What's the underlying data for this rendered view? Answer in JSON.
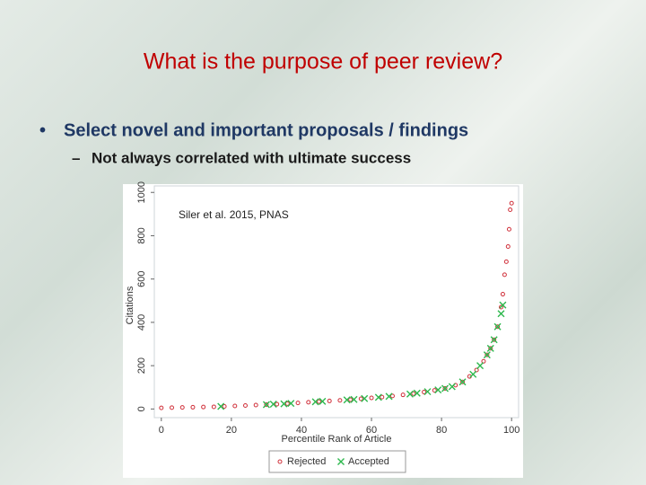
{
  "slide": {
    "title": "What is the purpose of peer review?",
    "bullets": [
      {
        "text": "Select novel and important  proposals / findings",
        "sub": [
          "Not always correlated with ultimate success"
        ]
      }
    ]
  },
  "chart_data": {
    "type": "scatter",
    "annotation": "Siler et al. 2015, PNAS",
    "x_label": "Percentile Rank of Article",
    "y_label": "Citations",
    "xlim": [
      -2,
      102
    ],
    "ylim": [
      -40,
      1030
    ],
    "xticks": [
      0,
      20,
      40,
      60,
      80,
      100
    ],
    "yticks": [
      0,
      200,
      400,
      600,
      800,
      1000
    ],
    "series": [
      {
        "name": "Rejected",
        "color": "#d0303a",
        "marker": "circle",
        "x": [
          0,
          3,
          6,
          9,
          12,
          15,
          18,
          21,
          24,
          27,
          30,
          33,
          36,
          39,
          42,
          45,
          48,
          51,
          54,
          57,
          60,
          63,
          66,
          69,
          72,
          75,
          78,
          81,
          84,
          86,
          88,
          90,
          92,
          93,
          94,
          95,
          96,
          97,
          97.5,
          98,
          98.5,
          99,
          99.3,
          99.6,
          100
        ],
        "values": [
          5,
          6,
          7,
          8,
          9,
          10,
          12,
          14,
          16,
          18,
          20,
          22,
          25,
          28,
          31,
          34,
          37,
          40,
          43,
          47,
          51,
          55,
          60,
          65,
          71,
          78,
          86,
          95,
          110,
          125,
          150,
          180,
          220,
          250,
          280,
          320,
          380,
          470,
          530,
          620,
          680,
          750,
          830,
          920,
          950
        ]
      },
      {
        "name": "Accepted",
        "color": "#2db84d",
        "marker": "x",
        "x": [
          17,
          30,
          32,
          35,
          37,
          44,
          46,
          53,
          55,
          58,
          62,
          65,
          71,
          73,
          76,
          79,
          81,
          83,
          86,
          89,
          91,
          93,
          94,
          95,
          96,
          97,
          97.5
        ],
        "values": [
          12,
          20,
          22,
          24,
          26,
          33,
          35,
          42,
          44,
          48,
          54,
          58,
          69,
          73,
          80,
          88,
          95,
          103,
          125,
          160,
          200,
          250,
          280,
          320,
          380,
          440,
          480
        ]
      }
    ]
  }
}
